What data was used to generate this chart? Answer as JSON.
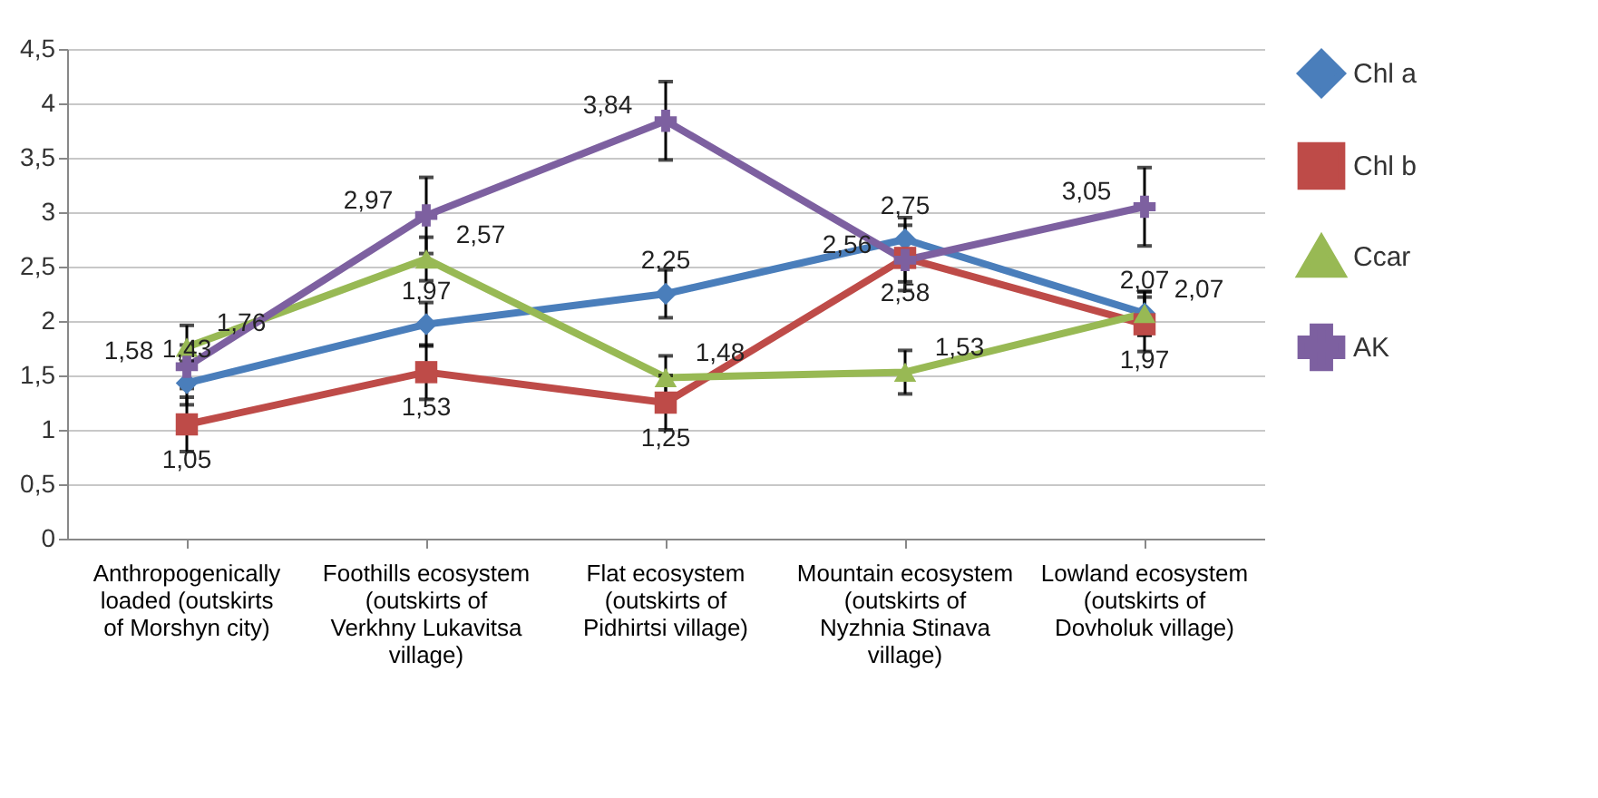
{
  "chart_data": {
    "type": "line",
    "categories": [
      "Anthropogenically loaded (outskirts of Morshyn city)",
      "Foothills ecosystem (outskirts of Verkhny Lukavitsa village)",
      "Flat ecosystem (outskirts of Pidhirtsi village)",
      "Mountain ecosystem (outskirts of Nyzhnia Stinava village)",
      "Lowland ecosystem (outskirts of Dovholuk village)"
    ],
    "series": [
      {
        "name": "Chl a",
        "color": "#4a7ebb",
        "marker": "diamond",
        "values": [
          1.43,
          1.97,
          2.25,
          2.75,
          2.07
        ],
        "value_labels": [
          "1,43",
          "1,97",
          "2,25",
          "2,75",
          "2,07"
        ],
        "errors": [
          0.2,
          0.2,
          0.22,
          0.2,
          0.2
        ]
      },
      {
        "name": "Chl b",
        "color": "#be4b48",
        "marker": "square",
        "values": [
          1.05,
          1.53,
          1.25,
          2.58,
          1.97
        ],
        "value_labels": [
          "1,05",
          "1,53",
          "1,25",
          "2,58",
          "1,97"
        ],
        "errors": [
          0.25,
          0.25,
          0.25,
          0.3,
          0.25
        ]
      },
      {
        "name": "Ccar",
        "color": "#98b954",
        "marker": "triangle",
        "values": [
          1.76,
          2.57,
          1.48,
          1.53,
          2.07
        ],
        "value_labels": [
          "1,76",
          "2,57",
          "1,48",
          "1,53",
          "2,07"
        ],
        "errors": [
          0.2,
          0.2,
          0.2,
          0.2,
          0.2
        ]
      },
      {
        "name": "AK",
        "color": "#7d60a0",
        "marker": "cross",
        "values": [
          1.58,
          2.97,
          3.84,
          2.56,
          3.05
        ],
        "value_labels": [
          "1,58",
          "2,97",
          "3,84",
          "2,56",
          "3,05"
        ],
        "errors": [
          0.2,
          0.35,
          0.36,
          0.2,
          0.36
        ]
      }
    ],
    "ylim": [
      0,
      4.5
    ],
    "yticks": [
      {
        "value": 0,
        "label": "0"
      },
      {
        "value": 0.5,
        "label": "0,5"
      },
      {
        "value": 1,
        "label": "1"
      },
      {
        "value": 1.5,
        "label": "1,5"
      },
      {
        "value": 2,
        "label": "2"
      },
      {
        "value": 2.5,
        "label": "2,5"
      },
      {
        "value": 3,
        "label": "3"
      },
      {
        "value": 3.5,
        "label": "3,5"
      },
      {
        "value": 4,
        "label": "4"
      },
      {
        "value": 4.5,
        "label": "4,5"
      }
    ],
    "grid": "y",
    "legend": "right"
  }
}
